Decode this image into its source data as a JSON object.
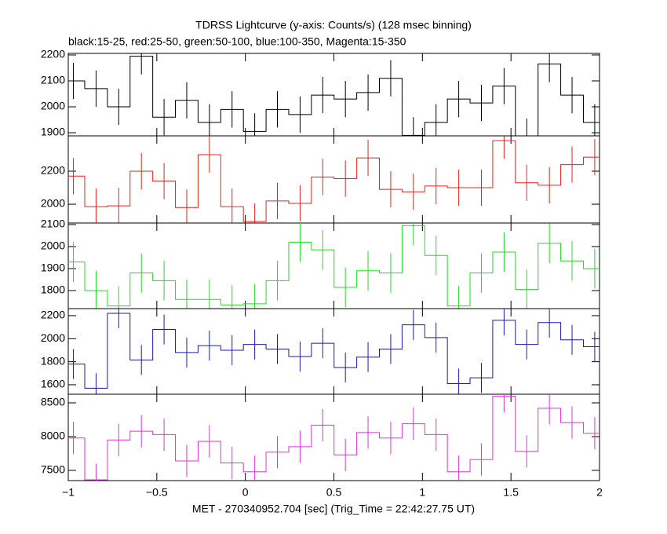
{
  "chart_data": [
    {
      "type": "step",
      "title": "TDRSS Lightcurve (y-axis: Counts/s) (128 msec binning)",
      "subtitle": "black:15-25, red:25-50, green:50-100, blue:100-350, Magenta:15-350",
      "x": [
        -0.971,
        -0.843,
        -0.715,
        -0.587,
        -0.459,
        -0.331,
        -0.203,
        -0.075,
        0.053,
        0.181,
        0.309,
        0.437,
        0.565,
        0.693,
        0.821,
        0.949,
        1.077,
        1.205,
        1.333,
        1.461,
        1.589,
        1.717,
        1.845,
        1.973
      ],
      "series": [
        {
          "color": "#000000",
          "values": [
            2100,
            2070,
            2000,
            2195,
            1960,
            2025,
            1940,
            1990,
            1905,
            1990,
            1970,
            2045,
            2030,
            2055,
            2110,
            1890,
            1940,
            2030,
            2015,
            2080,
            1885,
            2165,
            2045,
            1940
          ],
          "errors": [
            70,
            70,
            70,
            70,
            70,
            70,
            70,
            70,
            70,
            70,
            70,
            70,
            70,
            70,
            70,
            70,
            70,
            70,
            70,
            70,
            70,
            70,
            70,
            70
          ]
        }
      ],
      "xlim": [
        -1,
        2
      ],
      "ylim": [
        1888,
        2206
      ],
      "yticks": [
        1900,
        2000,
        2100,
        2200
      ]
    },
    {
      "type": "step",
      "x": [
        -0.971,
        -0.843,
        -0.715,
        -0.587,
        -0.459,
        -0.331,
        -0.203,
        -0.075,
        0.053,
        0.181,
        0.309,
        0.437,
        0.565,
        0.693,
        0.821,
        0.949,
        1.077,
        1.205,
        1.333,
        1.461,
        1.589,
        1.717,
        1.845,
        1.973
      ],
      "series": [
        {
          "color": "#e8221c",
          "values": [
            2170,
            1985,
            1990,
            2200,
            2140,
            1980,
            2300,
            1985,
            1895,
            2020,
            2005,
            2165,
            2155,
            2280,
            2090,
            2075,
            2110,
            2100,
            2100,
            2385,
            2130,
            2115,
            2240,
            2285
          ],
          "errors": [
            110,
            110,
            110,
            110,
            110,
            110,
            110,
            110,
            110,
            110,
            110,
            110,
            110,
            110,
            110,
            110,
            110,
            110,
            110,
            110,
            110,
            110,
            110,
            110
          ]
        }
      ],
      "xlim": [
        -1,
        2
      ],
      "ylim": [
        1886,
        2414
      ],
      "yticks": [
        2000,
        2200
      ]
    },
    {
      "type": "step",
      "x": [
        -0.971,
        -0.843,
        -0.715,
        -0.587,
        -0.459,
        -0.331,
        -0.203,
        -0.075,
        0.053,
        0.181,
        0.309,
        0.437,
        0.565,
        0.693,
        0.821,
        0.949,
        1.077,
        1.205,
        1.333,
        1.461,
        1.589,
        1.717,
        1.845,
        1.973
      ],
      "series": [
        {
          "color": "#22dd22",
          "values": [
            1930,
            1800,
            1730,
            1880,
            1845,
            1760,
            1760,
            1735,
            1740,
            1845,
            2020,
            1985,
            1815,
            1890,
            1880,
            2095,
            1960,
            1730,
            1880,
            1975,
            1805,
            2015,
            1935,
            1900
          ],
          "errors": [
            90,
            90,
            90,
            90,
            90,
            90,
            90,
            90,
            90,
            90,
            90,
            90,
            90,
            90,
            90,
            90,
            90,
            90,
            90,
            90,
            90,
            90,
            90,
            90
          ]
        }
      ],
      "xlim": [
        -1,
        2
      ],
      "ylim": [
        1718,
        2107
      ],
      "yticks": [
        1800,
        1900,
        2000,
        2100
      ]
    },
    {
      "type": "step",
      "x": [
        -0.971,
        -0.843,
        -0.715,
        -0.587,
        -0.459,
        -0.331,
        -0.203,
        -0.075,
        0.053,
        0.181,
        0.309,
        0.437,
        0.565,
        0.693,
        0.821,
        0.949,
        1.077,
        1.205,
        1.333,
        1.461,
        1.589,
        1.717,
        1.845,
        1.973
      ],
      "series": [
        {
          "color": "#1a1ab0",
          "values": [
            1780,
            1570,
            2220,
            1815,
            2080,
            1880,
            1940,
            1900,
            1950,
            1910,
            1845,
            1960,
            1750,
            1840,
            1910,
            2120,
            2010,
            1610,
            1660,
            2160,
            1950,
            2140,
            1990,
            1930
          ],
          "errors": [
            130,
            130,
            130,
            130,
            130,
            130,
            130,
            130,
            130,
            130,
            130,
            130,
            130,
            130,
            130,
            130,
            130,
            130,
            130,
            130,
            130,
            130,
            130,
            130
          ]
        }
      ],
      "xlim": [
        -1,
        2
      ],
      "ylim": [
        1518,
        2261
      ],
      "yticks": [
        1600,
        1800,
        2000,
        2200
      ]
    },
    {
      "type": "step",
      "xlabel": "MET - 270340952.704 [sec] (Trig_Time = 22:42:27.75 UT)",
      "x": [
        -0.971,
        -0.843,
        -0.715,
        -0.587,
        -0.459,
        -0.331,
        -0.203,
        -0.075,
        0.053,
        0.181,
        0.309,
        0.437,
        0.565,
        0.693,
        0.821,
        0.949,
        1.077,
        1.205,
        1.333,
        1.461,
        1.589,
        1.717,
        1.845,
        1.973
      ],
      "series": [
        {
          "color": "#dd33dd",
          "values": [
            7980,
            7360,
            7950,
            8080,
            8030,
            7640,
            7930,
            7610,
            7480,
            7770,
            7850,
            8170,
            7730,
            8060,
            7980,
            8190,
            8030,
            7480,
            7660,
            8600,
            7780,
            8420,
            8210,
            8050
          ],
          "errors": [
            240,
            240,
            240,
            240,
            240,
            240,
            240,
            240,
            240,
            240,
            240,
            240,
            240,
            240,
            240,
            240,
            240,
            240,
            240,
            240,
            240,
            240,
            240,
            240
          ]
        }
      ],
      "xlim": [
        -1,
        2
      ],
      "ylim": [
        7349,
        8628
      ],
      "yticks": [
        7500,
        8000,
        8500
      ],
      "xticks": [
        {
          "value": -1,
          "label": "−1"
        },
        {
          "value": -0.5,
          "label": "−0.5"
        },
        0,
        0.5,
        1,
        1.5,
        2
      ]
    }
  ]
}
